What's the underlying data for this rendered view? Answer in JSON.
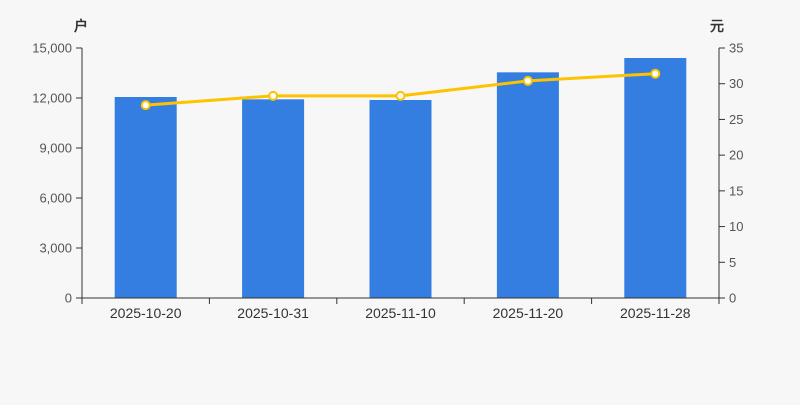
{
  "page": {
    "background": "#f7f7f7"
  },
  "chart_data": {
    "type": "bar",
    "subtype": "dual-axis bar + line combo",
    "title": "",
    "categories": [
      "2025-10-20",
      "2025-10-31",
      "2025-11-10",
      "2025-11-20",
      "2025-11-28"
    ],
    "series": [
      {
        "name": "bar-series-households",
        "type": "bar",
        "y_axis": "left",
        "color": "#347ee2",
        "values": [
          12060,
          11920,
          11880,
          13540,
          14400
        ]
      },
      {
        "name": "line-series-price",
        "type": "line",
        "y_axis": "right",
        "color": "#fdc300",
        "marker": "hollow-circle",
        "marker_fill": "#ffffff",
        "values": [
          27.0,
          28.3,
          28.3,
          30.4,
          31.4
        ]
      }
    ],
    "left_axis": {
      "unit": "户",
      "min": 0,
      "max": 15000,
      "tick_interval": 3000,
      "tick_labels": [
        "15,000",
        "12,000",
        "9,000",
        "6,000",
        "3,000",
        "0"
      ]
    },
    "right_axis": {
      "unit": "元",
      "min": 0,
      "max": 35,
      "tick_interval": 5,
      "tick_labels": [
        "35",
        "30",
        "25",
        "20",
        "15",
        "10",
        "5",
        "0"
      ]
    },
    "grid": "off",
    "legend": "none",
    "colors": {
      "bar": "#347ee2",
      "line": "#fdc300",
      "marker_fill": "#ffffff",
      "axis": "#333333",
      "tick_text": "#555555",
      "label_text": "#333333",
      "background": "#f7f7f7"
    }
  }
}
